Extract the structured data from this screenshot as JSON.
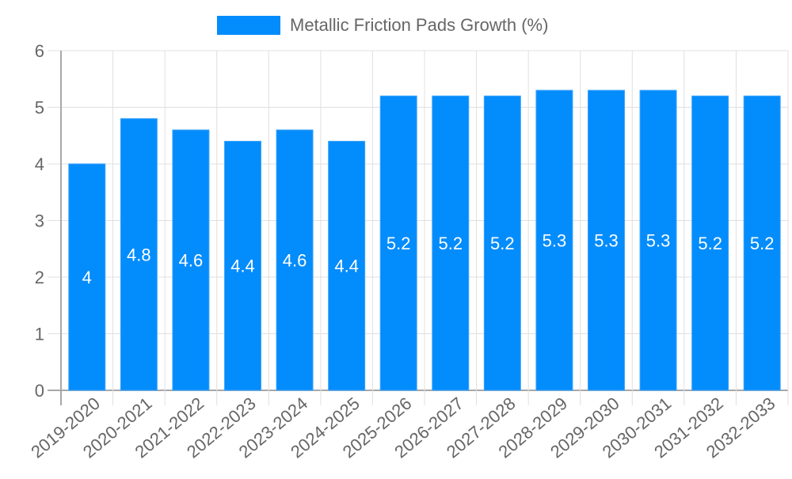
{
  "legend": {
    "label": "Metallic Friction Pads Growth (%)",
    "swatch_color": "#038cfc"
  },
  "colors": {
    "bar": "#038cfc",
    "bar_border": "#3fa4fb",
    "grid": "#e0e0e0",
    "axis": "#a8a8a8",
    "tick_text": "#666666",
    "data_label": "#ffffff",
    "legend_text": "#666666"
  },
  "chart_data": {
    "type": "bar",
    "title": "",
    "xlabel": "",
    "ylabel": "",
    "categories": [
      "2019-2020",
      "2020-2021",
      "2021-2022",
      "2022-2023",
      "2023-2024",
      "2024-2025",
      "2025-2026",
      "2026-2027",
      "2027-2028",
      "2028-2029",
      "2029-2030",
      "2030-2031",
      "2031-2032",
      "2032-2033"
    ],
    "series": [
      {
        "name": "Metallic Friction Pads Growth (%)",
        "values": [
          4,
          4.8,
          4.6,
          4.4,
          4.6,
          4.4,
          5.2,
          5.2,
          5.2,
          5.3,
          5.3,
          5.3,
          5.2,
          5.2
        ]
      }
    ],
    "ylim": [
      0,
      6
    ],
    "yticks": [
      0,
      1,
      2,
      3,
      4,
      5,
      6
    ],
    "grid": true,
    "legend_position": "top",
    "data_labels": true
  }
}
